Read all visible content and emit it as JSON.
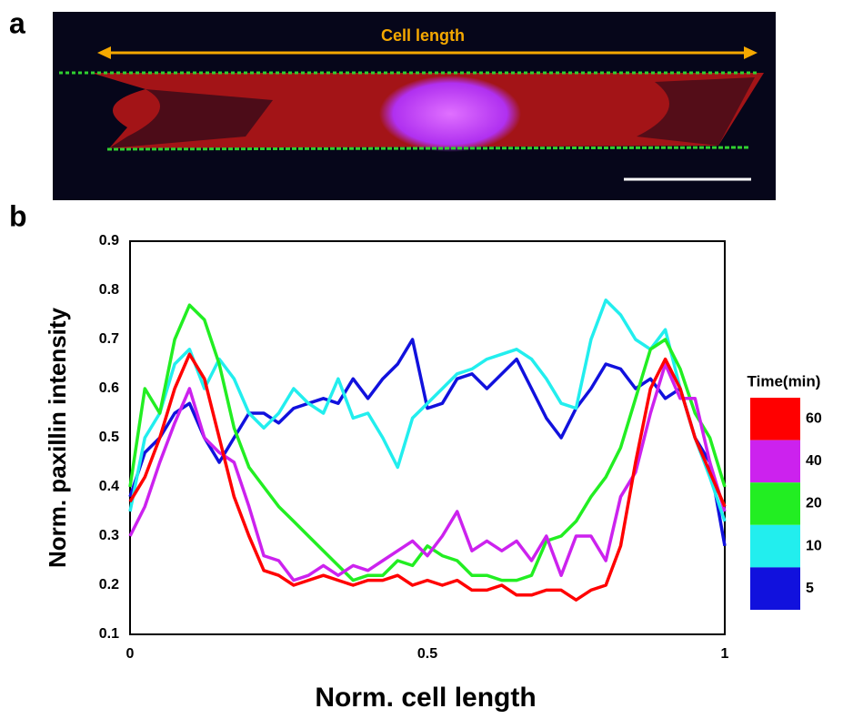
{
  "figure": {
    "panel_labels": [
      "a",
      "b"
    ],
    "image_annotation": "Cell length"
  },
  "chart_data": {
    "type": "line",
    "xlabel": "Norm. cell length",
    "ylabel": "Norm. paxillin intensity",
    "legend_title": "Time(min)",
    "legend": "right",
    "x": [
      0,
      0.025,
      0.05,
      0.075,
      0.1,
      0.125,
      0.15,
      0.175,
      0.2,
      0.225,
      0.25,
      0.275,
      0.3,
      0.325,
      0.35,
      0.375,
      0.4,
      0.425,
      0.45,
      0.475,
      0.5,
      0.525,
      0.55,
      0.575,
      0.6,
      0.625,
      0.65,
      0.675,
      0.7,
      0.725,
      0.75,
      0.775,
      0.8,
      0.825,
      0.85,
      0.875,
      0.9,
      0.925,
      0.95,
      0.975,
      1
    ],
    "xlim": [
      0,
      1
    ],
    "xticks": [
      0,
      0.5,
      1
    ],
    "ylim": [
      0.1,
      0.9
    ],
    "yticks": [
      0.1,
      0.2,
      0.3,
      0.4,
      0.5,
      0.6,
      0.7,
      0.8,
      0.9
    ],
    "series": [
      {
        "name": "60",
        "color": "#ff0000",
        "values": [
          0.37,
          0.42,
          0.5,
          0.6,
          0.67,
          0.62,
          0.5,
          0.38,
          0.3,
          0.23,
          0.22,
          0.2,
          0.21,
          0.22,
          0.21,
          0.2,
          0.21,
          0.21,
          0.22,
          0.2,
          0.21,
          0.2,
          0.21,
          0.19,
          0.19,
          0.2,
          0.18,
          0.18,
          0.19,
          0.19,
          0.17,
          0.19,
          0.2,
          0.28,
          0.45,
          0.6,
          0.66,
          0.6,
          0.5,
          0.43,
          0.36
        ]
      },
      {
        "name": "40",
        "color": "#cc22ee",
        "values": [
          0.3,
          0.36,
          0.45,
          0.53,
          0.6,
          0.5,
          0.47,
          0.45,
          0.36,
          0.26,
          0.25,
          0.21,
          0.22,
          0.24,
          0.22,
          0.24,
          0.23,
          0.25,
          0.27,
          0.29,
          0.26,
          0.3,
          0.35,
          0.27,
          0.29,
          0.27,
          0.29,
          0.25,
          0.3,
          0.22,
          0.3,
          0.3,
          0.25,
          0.38,
          0.43,
          0.55,
          0.65,
          0.58,
          0.58,
          0.45,
          0.35
        ]
      },
      {
        "name": "20",
        "color": "#22ee22",
        "values": [
          0.4,
          0.6,
          0.55,
          0.7,
          0.77,
          0.74,
          0.65,
          0.52,
          0.44,
          0.4,
          0.36,
          0.33,
          0.3,
          0.27,
          0.24,
          0.21,
          0.22,
          0.22,
          0.25,
          0.24,
          0.28,
          0.26,
          0.25,
          0.22,
          0.22,
          0.21,
          0.21,
          0.22,
          0.29,
          0.3,
          0.33,
          0.38,
          0.42,
          0.48,
          0.58,
          0.68,
          0.7,
          0.64,
          0.55,
          0.5,
          0.4
        ]
      },
      {
        "name": "10",
        "color": "#22eeee",
        "values": [
          0.35,
          0.5,
          0.55,
          0.65,
          0.68,
          0.6,
          0.66,
          0.62,
          0.55,
          0.52,
          0.55,
          0.6,
          0.57,
          0.55,
          0.62,
          0.54,
          0.55,
          0.5,
          0.44,
          0.54,
          0.57,
          0.6,
          0.63,
          0.64,
          0.66,
          0.67,
          0.68,
          0.66,
          0.62,
          0.57,
          0.56,
          0.7,
          0.78,
          0.75,
          0.7,
          0.68,
          0.72,
          0.6,
          0.5,
          0.42,
          0.33
        ]
      },
      {
        "name": "5",
        "color": "#1111dd",
        "values": [
          0.38,
          0.47,
          0.5,
          0.55,
          0.57,
          0.5,
          0.45,
          0.5,
          0.55,
          0.55,
          0.53,
          0.56,
          0.57,
          0.58,
          0.57,
          0.62,
          0.58,
          0.62,
          0.65,
          0.7,
          0.56,
          0.57,
          0.62,
          0.63,
          0.6,
          0.63,
          0.66,
          0.6,
          0.54,
          0.5,
          0.56,
          0.6,
          0.65,
          0.64,
          0.6,
          0.62,
          0.58,
          0.6,
          0.5,
          0.45,
          0.28
        ]
      }
    ]
  }
}
